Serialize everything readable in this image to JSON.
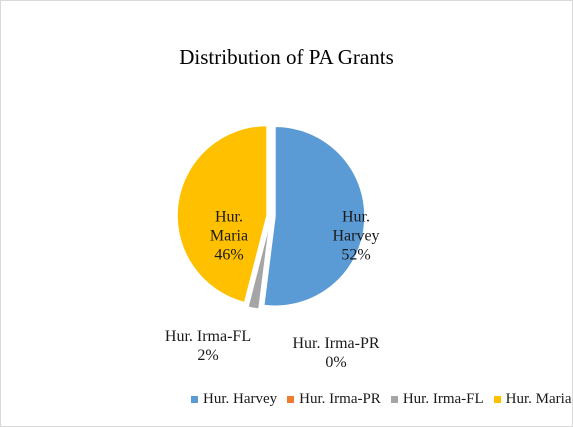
{
  "chart_data": {
    "type": "pie",
    "title": "Distribution of PA Grants",
    "categories": [
      "Hur. Harvey",
      "Hur. Irma-PR",
      "Hur. Irma-FL",
      "Hur. Maria"
    ],
    "values": [
      52,
      0,
      2,
      46
    ],
    "value_labels": [
      "52%",
      "0%",
      "2%",
      "46%"
    ],
    "colors": [
      "#5b9bd5",
      "#ed7d31",
      "#a5a5a5",
      "#ffc000"
    ],
    "legend": "bottom"
  }
}
